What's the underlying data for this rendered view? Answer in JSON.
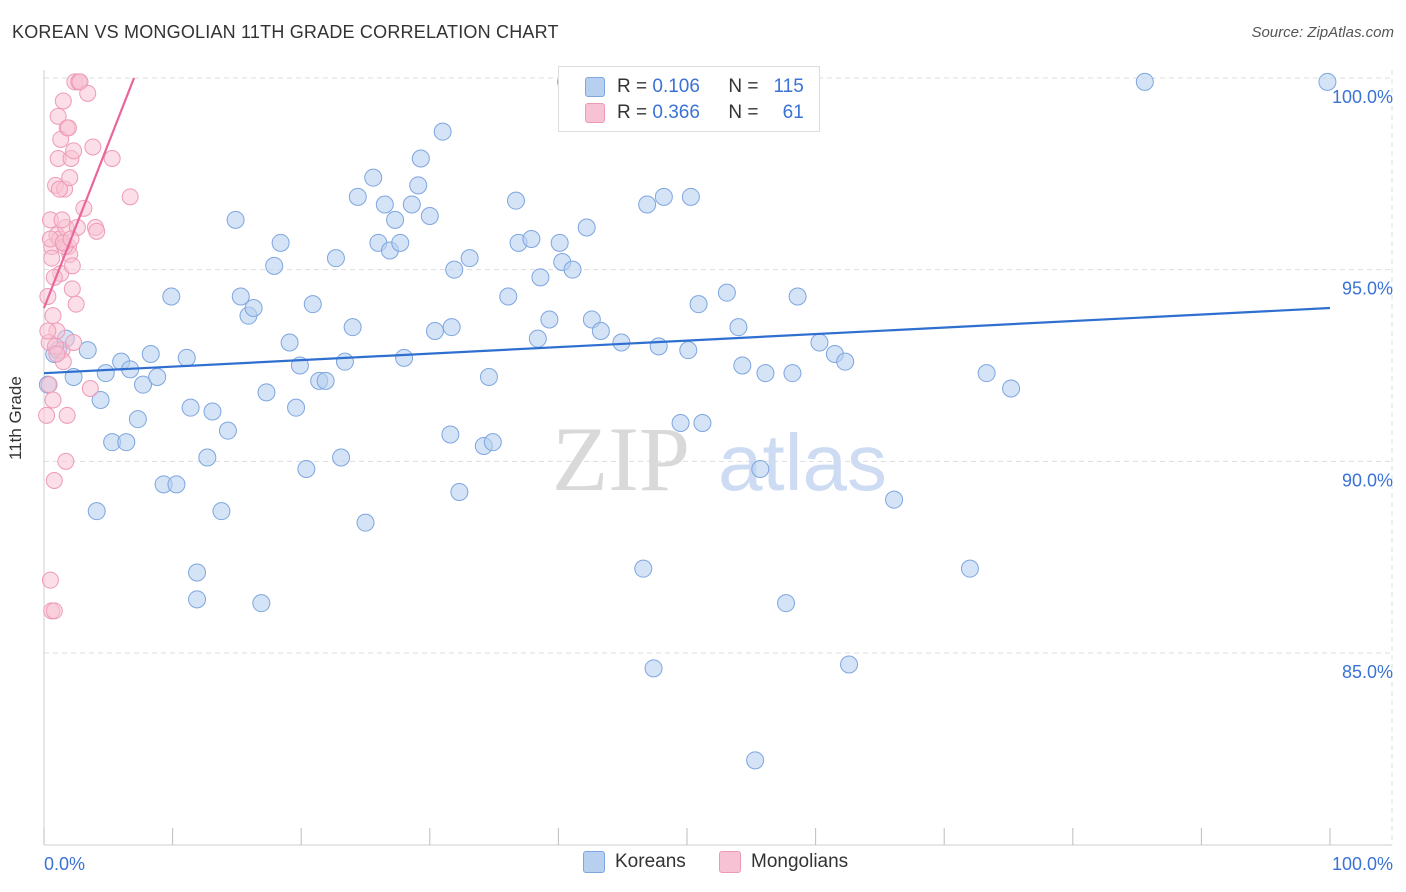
{
  "title": "KOREAN VS MONGOLIAN 11TH GRADE CORRELATION CHART",
  "source": "Source: ZipAtlas.com",
  "watermark": {
    "zip": "ZIP",
    "atlas": "atlas"
  },
  "legend": {
    "rows": [
      {
        "r_label": "R =",
        "r_value": "0.106",
        "n_label": "N =",
        "n_value": "115"
      },
      {
        "r_label": "R =",
        "r_value": "0.366",
        "n_label": "N =",
        "n_value": "61"
      }
    ]
  },
  "bottom_legend": {
    "koreans": "Koreans",
    "mongolians": "Mongolians"
  },
  "colors": {
    "korean_fill": "#b8d0f0",
    "korean_stroke": "#7ea6e0",
    "korean_line": "#2f6fcf",
    "mongolian_fill": "#f7c2d3",
    "mongolian_stroke": "#ee9ab6",
    "mongolian_line": "#e8669a",
    "axis_label": "#3b72d6",
    "grid": "#dddddd"
  },
  "chart_data": {
    "type": "scatter",
    "title": "KOREAN VS MONGOLIAN 11TH GRADE CORRELATION CHART",
    "xlabel": "",
    "ylabel": "11th Grade",
    "xlim": [
      0,
      100
    ],
    "ylim": [
      80.5,
      100.3
    ],
    "x_tick_labels": [
      "0.0%",
      "100.0%"
    ],
    "y_ticks": [
      85,
      90,
      95,
      100
    ],
    "y_tick_labels": [
      "85.0%",
      "90.0%",
      "95.0%",
      "100.0%"
    ],
    "series": [
      {
        "name": "Koreans",
        "trendline": {
          "x": [
            0,
            100
          ],
          "y": [
            92.3,
            94.0
          ]
        },
        "points": [
          [
            0.3,
            92.0
          ],
          [
            0.8,
            92.8
          ],
          [
            1.1,
            92.9
          ],
          [
            1.7,
            93.2
          ],
          [
            2.3,
            92.2
          ],
          [
            3.4,
            92.9
          ],
          [
            4.1,
            88.7
          ],
          [
            4.4,
            91.6
          ],
          [
            4.8,
            92.3
          ],
          [
            5.3,
            90.5
          ],
          [
            6.0,
            92.6
          ],
          [
            6.4,
            90.5
          ],
          [
            6.7,
            92.4
          ],
          [
            7.3,
            91.1
          ],
          [
            7.7,
            92.0
          ],
          [
            8.3,
            92.8
          ],
          [
            8.8,
            92.2
          ],
          [
            9.3,
            89.4
          ],
          [
            9.9,
            94.3
          ],
          [
            10.3,
            89.4
          ],
          [
            11.1,
            92.7
          ],
          [
            11.4,
            91.4
          ],
          [
            11.9,
            87.1
          ],
          [
            11.9,
            86.4
          ],
          [
            12.7,
            90.1
          ],
          [
            13.1,
            91.3
          ],
          [
            13.8,
            88.7
          ],
          [
            14.3,
            90.8
          ],
          [
            14.9,
            96.3
          ],
          [
            15.3,
            94.3
          ],
          [
            15.9,
            93.8
          ],
          [
            16.3,
            94.0
          ],
          [
            16.9,
            86.3
          ],
          [
            17.3,
            91.8
          ],
          [
            17.9,
            95.1
          ],
          [
            18.4,
            95.7
          ],
          [
            19.1,
            93.1
          ],
          [
            19.6,
            91.4
          ],
          [
            19.9,
            92.5
          ],
          [
            20.4,
            89.8
          ],
          [
            20.9,
            94.1
          ],
          [
            21.4,
            92.1
          ],
          [
            21.9,
            92.1
          ],
          [
            22.7,
            95.3
          ],
          [
            23.1,
            90.1
          ],
          [
            23.4,
            92.6
          ],
          [
            24.0,
            93.5
          ],
          [
            24.4,
            96.9
          ],
          [
            25.0,
            88.4
          ],
          [
            25.6,
            97.4
          ],
          [
            26.0,
            95.7
          ],
          [
            26.5,
            96.7
          ],
          [
            26.9,
            95.5
          ],
          [
            27.3,
            96.3
          ],
          [
            27.7,
            95.7
          ],
          [
            28.0,
            92.7
          ],
          [
            28.6,
            96.7
          ],
          [
            29.1,
            97.2
          ],
          [
            29.3,
            97.9
          ],
          [
            30.0,
            96.4
          ],
          [
            30.4,
            93.4
          ],
          [
            31.0,
            98.6
          ],
          [
            31.6,
            90.7
          ],
          [
            31.9,
            95.0
          ],
          [
            32.3,
            89.2
          ],
          [
            33.1,
            95.3
          ],
          [
            34.2,
            90.4
          ],
          [
            34.6,
            92.2
          ],
          [
            34.9,
            90.5
          ],
          [
            36.1,
            94.3
          ],
          [
            36.7,
            96.8
          ],
          [
            36.9,
            95.7
          ],
          [
            37.9,
            95.8
          ],
          [
            38.4,
            93.2
          ],
          [
            38.6,
            94.8
          ],
          [
            39.3,
            93.7
          ],
          [
            40.1,
            95.7
          ],
          [
            40.3,
            95.2
          ],
          [
            41.1,
            95.0
          ],
          [
            42.2,
            96.1
          ],
          [
            42.6,
            93.7
          ],
          [
            43.3,
            93.4
          ],
          [
            44.9,
            93.1
          ],
          [
            46.6,
            87.2
          ],
          [
            46.9,
            96.7
          ],
          [
            47.4,
            84.6
          ],
          [
            47.8,
            93.0
          ],
          [
            48.2,
            96.9
          ],
          [
            49.5,
            91.0
          ],
          [
            50.1,
            92.9
          ],
          [
            50.3,
            96.9
          ],
          [
            50.9,
            94.1
          ],
          [
            51.2,
            91.0
          ],
          [
            53.1,
            94.4
          ],
          [
            54.0,
            93.5
          ],
          [
            54.3,
            92.5
          ],
          [
            55.3,
            82.2
          ],
          [
            55.7,
            89.8
          ],
          [
            56.1,
            92.3
          ],
          [
            57.7,
            86.3
          ],
          [
            58.2,
            92.3
          ],
          [
            58.6,
            94.3
          ],
          [
            60.3,
            93.1
          ],
          [
            61.5,
            92.8
          ],
          [
            62.3,
            92.6
          ],
          [
            62.6,
            84.7
          ],
          [
            66.1,
            89.0
          ],
          [
            72.0,
            87.2
          ],
          [
            73.3,
            92.3
          ],
          [
            75.2,
            91.9
          ],
          [
            85.6,
            99.9
          ],
          [
            99.8,
            99.9
          ],
          [
            40.6,
            99.9
          ],
          [
            31.7,
            93.5
          ]
        ]
      },
      {
        "name": "Mongolians",
        "trendline": {
          "x": [
            0,
            7.0
          ],
          "y": [
            94.0,
            100.0
          ]
        },
        "points": [
          [
            0.2,
            91.2
          ],
          [
            0.3,
            94.3
          ],
          [
            0.4,
            92.0
          ],
          [
            0.5,
            96.3
          ],
          [
            0.6,
            95.6
          ],
          [
            0.6,
            86.1
          ],
          [
            0.7,
            93.8
          ],
          [
            0.8,
            86.1
          ],
          [
            0.8,
            89.5
          ],
          [
            0.9,
            97.2
          ],
          [
            1.0,
            95.9
          ],
          [
            1.0,
            93.4
          ],
          [
            1.1,
            97.9
          ],
          [
            1.2,
            95.8
          ],
          [
            1.3,
            94.9
          ],
          [
            1.4,
            92.9
          ],
          [
            1.5,
            92.6
          ],
          [
            1.5,
            99.4
          ],
          [
            1.6,
            97.1
          ],
          [
            1.7,
            96.1
          ],
          [
            1.8,
            98.7
          ],
          [
            1.9,
            95.6
          ],
          [
            2.0,
            95.4
          ],
          [
            2.1,
            97.9
          ],
          [
            2.2,
            94.5
          ],
          [
            2.3,
            98.1
          ],
          [
            2.4,
            99.9
          ],
          [
            2.6,
            96.1
          ],
          [
            2.7,
            99.9
          ],
          [
            2.8,
            99.9
          ],
          [
            3.1,
            96.6
          ],
          [
            3.4,
            99.6
          ],
          [
            3.6,
            91.9
          ],
          [
            3.8,
            98.2
          ],
          [
            4.0,
            96.1
          ],
          [
            4.1,
            96.0
          ],
          [
            5.3,
            97.9
          ],
          [
            6.7,
            96.9
          ],
          [
            0.4,
            93.1
          ],
          [
            0.5,
            86.9
          ],
          [
            0.6,
            95.3
          ],
          [
            0.7,
            91.6
          ],
          [
            0.9,
            93.0
          ],
          [
            1.1,
            99.0
          ],
          [
            1.2,
            97.1
          ],
          [
            1.3,
            98.4
          ],
          [
            1.4,
            96.3
          ],
          [
            1.6,
            95.6
          ],
          [
            1.7,
            90.0
          ],
          [
            1.8,
            91.2
          ],
          [
            1.9,
            98.7
          ],
          [
            2.0,
            97.4
          ],
          [
            2.2,
            95.1
          ],
          [
            2.3,
            93.1
          ],
          [
            2.5,
            94.1
          ],
          [
            0.3,
            93.4
          ],
          [
            0.5,
            95.8
          ],
          [
            0.8,
            94.8
          ],
          [
            1.0,
            92.8
          ],
          [
            1.5,
            95.7
          ],
          [
            2.1,
            95.8
          ]
        ]
      }
    ]
  }
}
